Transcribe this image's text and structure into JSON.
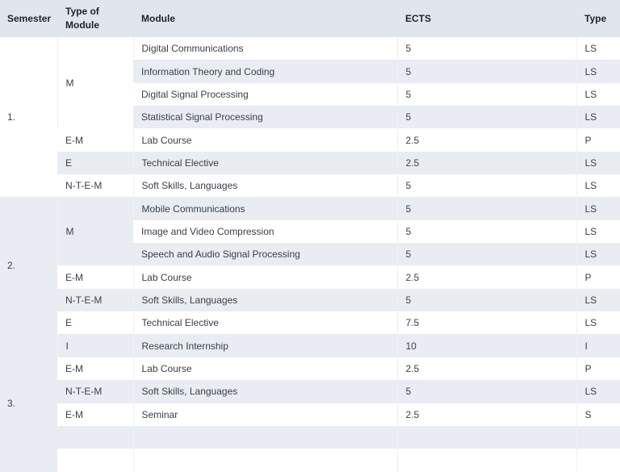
{
  "table": {
    "headers": {
      "semester": "Semester",
      "type_of_module": "Type of Module",
      "module": "Module",
      "ects": "ECTS",
      "type": "Type"
    },
    "semesters": [
      {
        "label": "1."
      },
      {
        "label": "2."
      },
      {
        "label": "3."
      }
    ],
    "rows": [
      {
        "type_of_module": "M",
        "module": "Digital Communications",
        "ects": "5",
        "type": "LS"
      },
      {
        "type_of_module": "",
        "module": "Information Theory and Coding",
        "ects": "5",
        "type": "LS"
      },
      {
        "type_of_module": "",
        "module": "Digital Signal Processing",
        "ects": "5",
        "type": "LS"
      },
      {
        "type_of_module": "",
        "module": "Statistical Signal Processing",
        "ects": "5",
        "type": "LS"
      },
      {
        "type_of_module": "E-M",
        "module": "Lab Course",
        "ects": "2.5",
        "type": "P"
      },
      {
        "type_of_module": "E",
        "module": "Technical Elective",
        "ects": "2.5",
        "type": "LS"
      },
      {
        "type_of_module": "N-T-E-M",
        "module": "Soft Skills, Languages",
        "ects": "5",
        "type": "LS"
      },
      {
        "type_of_module": "M",
        "module": "Mobile Communications",
        "ects": "5",
        "type": "LS"
      },
      {
        "type_of_module": "",
        "module": "Image and Video Compression",
        "ects": "5",
        "type": "LS"
      },
      {
        "type_of_module": "",
        "module": "Speech and Audio Signal Processing",
        "ects": "5",
        "type": "LS"
      },
      {
        "type_of_module": "E-M",
        "module": "Lab Course",
        "ects": "2.5",
        "type": "P"
      },
      {
        "type_of_module": "N-T-E-M",
        "module": "Soft Skills, Languages",
        "ects": "5",
        "type": "LS"
      },
      {
        "type_of_module": "E",
        "module": "Technical Elective",
        "ects": "7.5",
        "type": "LS"
      },
      {
        "type_of_module": "I",
        "module": "Research Internship",
        "ects": "10",
        "type": "I"
      },
      {
        "type_of_module": "E-M",
        "module": "Lab Course",
        "ects": "2.5",
        "type": "P"
      },
      {
        "type_of_module": "N-T-E-M",
        "module": "Soft Skills, Languages",
        "ects": "5",
        "type": "LS"
      },
      {
        "type_of_module": "E-M",
        "module": "Seminar",
        "ects": "2.5",
        "type": "S"
      }
    ]
  },
  "colors": {
    "header_bg": "#e1e6ee",
    "stripe_bg": "#e9edf3",
    "row_bg": "#ffffff",
    "text": "#3a3f47",
    "header_text": "#1f2329"
  }
}
